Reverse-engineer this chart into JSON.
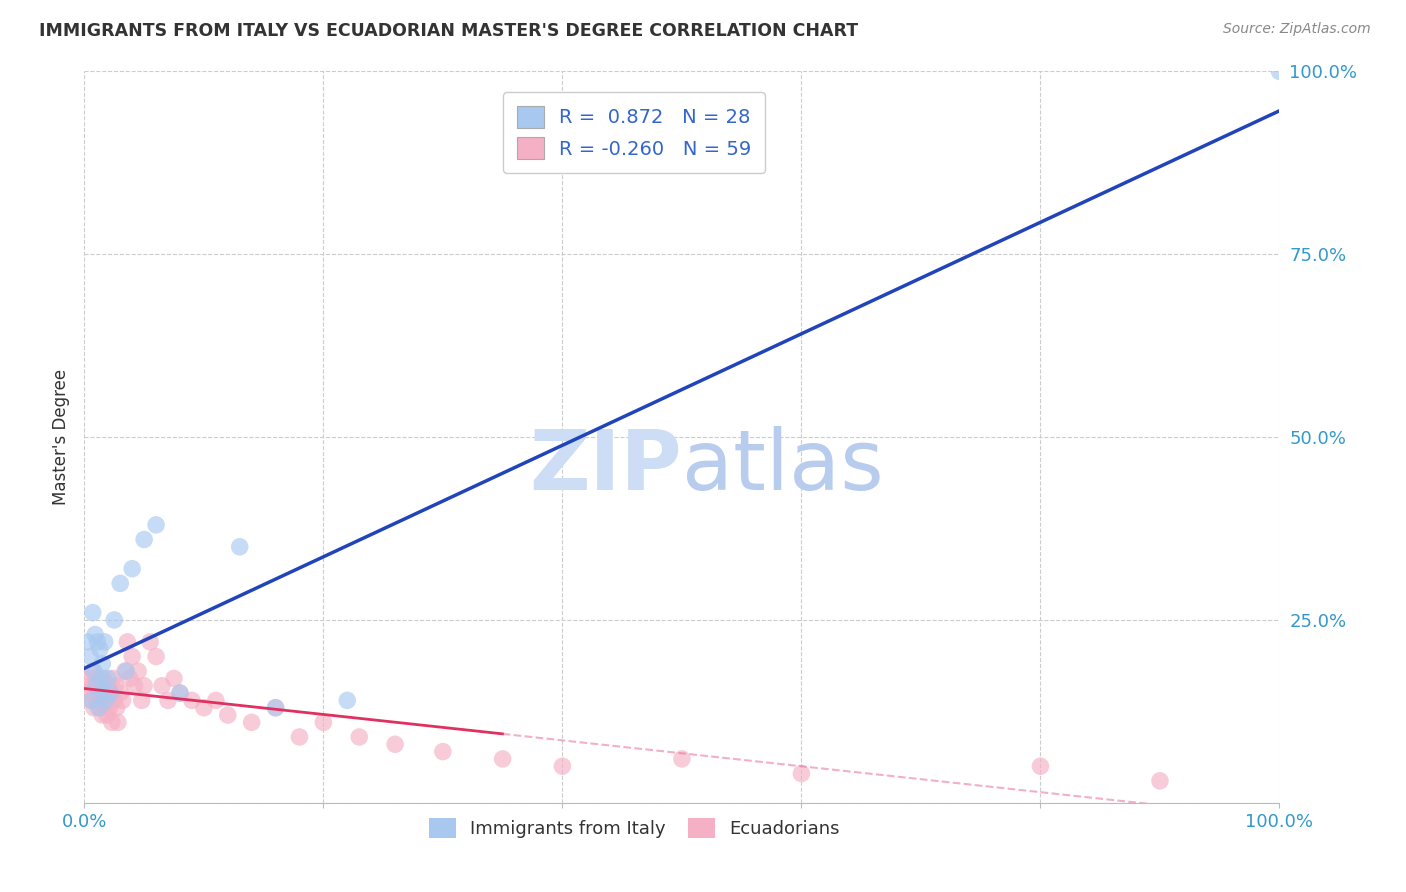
{
  "title": "IMMIGRANTS FROM ITALY VS ECUADORIAN MASTER'S DEGREE CORRELATION CHART",
  "source": "Source: ZipAtlas.com",
  "ylabel": "Master's Degree",
  "legend_label1": "Immigrants from Italy",
  "legend_label2": "Ecuadorians",
  "blue_color": "#a8c8f0",
  "pink_color": "#f5b0c5",
  "blue_line_color": "#2244bb",
  "pink_line_color": "#e03060",
  "pink_line_dash_color": "#e87090",
  "watermark_zip_color": "#ccddf5",
  "watermark_atlas_color": "#b8ccee",
  "background_color": "#ffffff",
  "grid_color": "#cccccc",
  "legend_text_color_r": "#000000",
  "legend_text_color_n": "#3366cc",
  "axis_tick_color": "#3399cc",
  "blue_scatter_x": [
    0.3,
    0.5,
    0.6,
    0.7,
    0.8,
    0.9,
    1.0,
    1.1,
    1.2,
    1.3,
    1.4,
    1.5,
    1.6,
    1.7,
    1.8,
    2.0,
    2.2,
    2.5,
    3.0,
    3.5,
    4.0,
    5.0,
    6.0,
    8.0,
    13.0,
    16.0,
    22.0,
    100.0
  ],
  "blue_scatter_y": [
    22.0,
    20.0,
    14.0,
    26.0,
    18.0,
    23.0,
    16.0,
    22.0,
    13.0,
    21.0,
    17.0,
    19.0,
    15.0,
    22.0,
    14.0,
    17.0,
    15.0,
    25.0,
    30.0,
    18.0,
    32.0,
    36.0,
    38.0,
    15.0,
    35.0,
    13.0,
    14.0,
    100.0
  ],
  "pink_scatter_x": [
    0.3,
    0.4,
    0.5,
    0.6,
    0.7,
    0.8,
    0.9,
    1.0,
    1.1,
    1.2,
    1.3,
    1.4,
    1.5,
    1.6,
    1.7,
    1.8,
    1.9,
    2.0,
    2.1,
    2.2,
    2.3,
    2.4,
    2.5,
    2.6,
    2.7,
    2.8,
    3.0,
    3.2,
    3.4,
    3.6,
    3.8,
    4.0,
    4.2,
    4.5,
    4.8,
    5.0,
    5.5,
    6.0,
    6.5,
    7.0,
    7.5,
    8.0,
    9.0,
    10.0,
    11.0,
    12.0,
    14.0,
    16.0,
    18.0,
    20.0,
    23.0,
    26.0,
    30.0,
    35.0,
    40.0,
    50.0,
    60.0,
    80.0,
    90.0
  ],
  "pink_scatter_y": [
    17.0,
    15.0,
    16.0,
    14.0,
    18.0,
    13.0,
    16.0,
    17.0,
    14.0,
    16.0,
    13.0,
    15.0,
    12.0,
    17.0,
    14.0,
    15.0,
    12.0,
    16.0,
    13.0,
    15.0,
    11.0,
    17.0,
    14.0,
    16.0,
    13.0,
    11.0,
    15.0,
    14.0,
    18.0,
    22.0,
    17.0,
    20.0,
    16.0,
    18.0,
    14.0,
    16.0,
    22.0,
    20.0,
    16.0,
    14.0,
    17.0,
    15.0,
    14.0,
    13.0,
    14.0,
    12.0,
    11.0,
    13.0,
    9.0,
    11.0,
    9.0,
    8.0,
    7.0,
    6.0,
    5.0,
    6.0,
    4.0,
    5.0,
    3.0
  ],
  "blue_line_x0": 0,
  "blue_line_x1": 100,
  "pink_solid_x0": 0,
  "pink_solid_x1": 35,
  "pink_dash_x0": 35,
  "pink_dash_x1": 100,
  "xlim": [
    0,
    100
  ],
  "ylim": [
    0,
    100
  ]
}
